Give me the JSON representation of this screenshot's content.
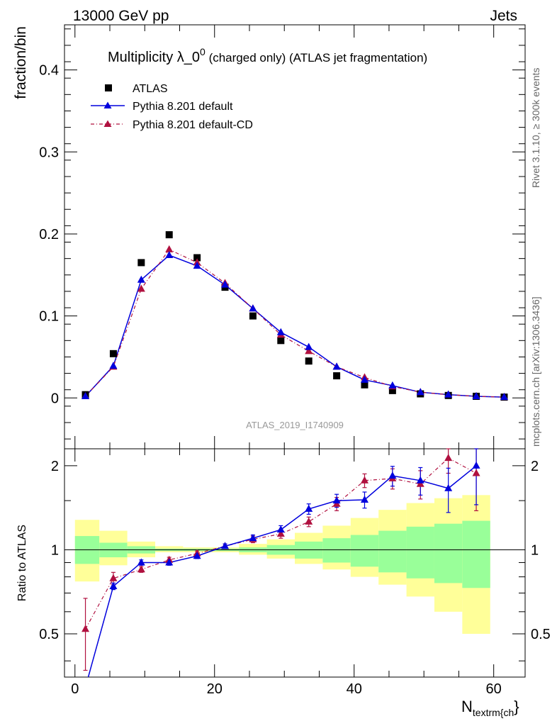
{
  "header": {
    "energy_label": "13000 GeV pp",
    "process_label": "Jets"
  },
  "title": {
    "main": "Multiplicity λ_0",
    "superscript": "0",
    "suffix": " (charged only) (ATLAS jet fragmentation)"
  },
  "side_labels": {
    "rivet": "Rivet 3.1.10, ≥ 300k events",
    "mcplots": "mcplots.cern.ch [arXiv:1306.3436]"
  },
  "watermark": "ATLAS_2019_I1740909",
  "axes": {
    "ylabel_main": "fraction/bin",
    "ylabel_ratio": "Ratio to ATLAS",
    "xlabel_main": "N",
    "xlabel_sub": "textrm{ch",
    "xlabel_close": "}"
  },
  "legend": {
    "atlas": "ATLAS",
    "default": "Pythia 8.201 default",
    "cd": "Pythia 8.201 default-CD"
  },
  "colors": {
    "atlas": "#000000",
    "default": "#0000dd",
    "cd": "#b0103f",
    "band_inner": "#99ff99",
    "band_outer": "#ffff99"
  },
  "chart_data": [
    {
      "type": "scatter",
      "panel": "main",
      "xlim": [
        -1.5,
        64.5
      ],
      "ylim": [
        -0.062,
        0.455
      ],
      "yticks": [
        0,
        0.1,
        0.2,
        0.3,
        0.4
      ],
      "xticks": [
        0,
        20,
        40,
        60
      ],
      "x": [
        1.5,
        5.5,
        9.5,
        13.5,
        17.5,
        21.5,
        25.5,
        29.5,
        33.5,
        37.5,
        41.5,
        45.5,
        49.5,
        53.5,
        57.5,
        61.5
      ],
      "series": [
        {
          "name": "ATLAS",
          "values": [
            0.004,
            0.054,
            0.165,
            0.199,
            0.171,
            0.135,
            0.1,
            0.07,
            0.045,
            0.027,
            0.016,
            0.009,
            0.005,
            0.003,
            0.002,
            0.001
          ]
        },
        {
          "name": "Pythia 8.201 default",
          "values": [
            0.002,
            0.039,
            0.144,
            0.174,
            0.161,
            0.138,
            0.109,
            0.08,
            0.062,
            0.038,
            0.022,
            0.015,
            0.007,
            0.004,
            0.002,
            0.001
          ]
        },
        {
          "name": "Pythia 8.201 default-CD",
          "values": [
            0.002,
            0.038,
            0.133,
            0.181,
            0.165,
            0.14,
            0.109,
            0.077,
            0.057,
            0.038,
            0.025,
            0.014,
            0.007,
            0.004,
            0.002,
            0.001
          ]
        }
      ]
    },
    {
      "type": "line",
      "panel": "ratio",
      "xlim": [
        -1.5,
        64.5
      ],
      "ylim": [
        0.35,
        2.3
      ],
      "yticks": [
        0.5,
        1,
        2
      ],
      "x": [
        1.5,
        5.5,
        9.5,
        13.5,
        17.5,
        21.5,
        25.5,
        29.5,
        33.5,
        37.5,
        41.5,
        45.5,
        49.5,
        53.5,
        57.5
      ],
      "series": [
        {
          "name": "Pythia 8.201 default",
          "values": [
            0.3,
            0.74,
            0.9,
            0.9,
            0.95,
            1.03,
            1.1,
            1.18,
            1.4,
            1.5,
            1.51,
            1.84,
            1.77,
            1.66,
            2.0
          ],
          "err": [
            0.02,
            0.02,
            0.02,
            0.02,
            0.02,
            0.02,
            0.03,
            0.04,
            0.06,
            0.08,
            0.1,
            0.15,
            0.2,
            0.3,
            0.55
          ]
        },
        {
          "name": "Pythia 8.201 default-CD",
          "values": [
            0.52,
            0.79,
            0.85,
            0.92,
            0.97,
            1.03,
            1.09,
            1.14,
            1.26,
            1.46,
            1.77,
            1.8,
            1.72,
            2.13,
            1.88
          ],
          "err": [
            0.15,
            0.04,
            0.02,
            0.02,
            0.02,
            0.02,
            0.03,
            0.04,
            0.05,
            0.08,
            0.1,
            0.15,
            0.2,
            0.25,
            0.5
          ]
        }
      ],
      "uncertainty_bands": {
        "edges": [
          0,
          3.5,
          7.5,
          11.5,
          15.5,
          19.5,
          23.5,
          27.5,
          31.5,
          35.5,
          39.5,
          43.5,
          47.5,
          51.5,
          55.5,
          59.5
        ],
        "inner_low": [
          0.89,
          0.94,
          0.97,
          0.99,
          0.99,
          0.99,
          0.98,
          0.96,
          0.93,
          0.9,
          0.87,
          0.83,
          0.79,
          0.76,
          0.73
        ],
        "inner_high": [
          1.12,
          1.06,
          1.03,
          1.01,
          1.01,
          1.01,
          1.02,
          1.04,
          1.07,
          1.1,
          1.13,
          1.17,
          1.21,
          1.24,
          1.27
        ],
        "outer_low": [
          0.77,
          0.88,
          0.94,
          0.98,
          0.98,
          0.98,
          0.96,
          0.93,
          0.89,
          0.85,
          0.8,
          0.75,
          0.68,
          0.6,
          0.5
        ],
        "outer_high": [
          1.28,
          1.17,
          1.07,
          1.03,
          1.02,
          1.02,
          1.05,
          1.09,
          1.15,
          1.22,
          1.3,
          1.39,
          1.47,
          1.53,
          1.57
        ]
      }
    }
  ]
}
